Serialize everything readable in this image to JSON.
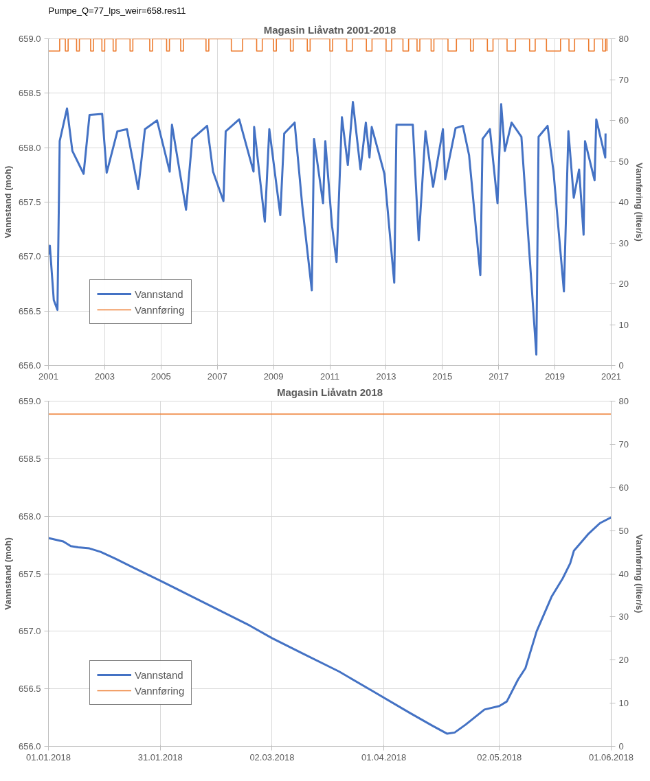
{
  "chart_data": [
    {
      "type": "line",
      "title": "Magasin Liåvatn 2001-2018",
      "annotations": [
        "Pumpe_Q=77_lps_weir=658.res11"
      ],
      "ylabel": "Vannstand (moh)",
      "y2label": "Vannføring (liter/s)",
      "xlim": [
        2001,
        2021
      ],
      "xticks": [
        2001,
        2003,
        2005,
        2007,
        2009,
        2011,
        2013,
        2015,
        2017,
        2019,
        2021
      ],
      "ylim": [
        656,
        659
      ],
      "yticks": [
        {
          "value": 656,
          "label": "656.0"
        },
        {
          "value": 656.5,
          "label": "656.5"
        },
        {
          "value": 657,
          "label": "657.0"
        },
        {
          "value": 657.5,
          "label": "657.5"
        },
        {
          "value": 658,
          "label": "658.0"
        },
        {
          "value": 658.5,
          "label": "658.5"
        },
        {
          "value": 659,
          "label": "659.0"
        }
      ],
      "y2lim": [
        0,
        80
      ],
      "y2ticks": [
        0,
        10,
        20,
        30,
        40,
        50,
        60,
        70,
        80
      ],
      "grid": true,
      "legend": "bottom left",
      "series": [
        {
          "name": "Vannstand",
          "color": "#4472c4",
          "x": [
            2001.0,
            2001.05,
            2001.19,
            2001.32,
            2001.4,
            2001.66,
            2001.85,
            2002.25,
            2002.46,
            2002.91,
            2003.07,
            2003.45,
            2003.79,
            2004.19,
            2004.43,
            2004.86,
            2005.31,
            2005.39,
            2005.89,
            2006.11,
            2006.64,
            2006.85,
            2007.22,
            2007.3,
            2007.78,
            2008.29,
            2008.31,
            2008.69,
            2008.85,
            2009.24,
            2009.38,
            2009.75,
            2010.02,
            2010.36,
            2010.44,
            2010.76,
            2010.84,
            2011.08,
            2011.24,
            2011.43,
            2011.64,
            2011.82,
            2012.09,
            2012.28,
            2012.41,
            2012.49,
            2012.94,
            2013.29,
            2013.37,
            2013.95,
            2014.16,
            2014.4,
            2014.67,
            2015.02,
            2015.1,
            2015.47,
            2015.73,
            2015.95,
            2016.35,
            2016.43,
            2016.69,
            2016.96,
            2017.09,
            2017.22,
            2017.46,
            2017.81,
            2018.34,
            2018.42,
            2018.74,
            2018.95,
            2019.32,
            2019.48,
            2019.67,
            2019.86,
            2020.02,
            2020.07,
            2020.41,
            2020.47,
            2020.79,
            2020.8
          ],
          "values": [
            657.02,
            657.1,
            656.6,
            656.51,
            658.06,
            658.36,
            657.97,
            657.76,
            658.3,
            658.31,
            657.77,
            658.15,
            658.17,
            657.62,
            658.17,
            658.25,
            657.78,
            658.21,
            657.43,
            658.08,
            658.2,
            657.78,
            657.51,
            658.15,
            658.26,
            657.78,
            658.19,
            657.32,
            658.17,
            657.38,
            658.13,
            658.23,
            657.47,
            656.69,
            658.08,
            657.49,
            658.06,
            657.28,
            656.95,
            658.28,
            657.84,
            658.42,
            657.8,
            658.23,
            657.91,
            658.19,
            657.76,
            656.76,
            658.21,
            658.21,
            657.15,
            658.15,
            657.64,
            658.17,
            657.71,
            658.18,
            658.2,
            657.93,
            656.83,
            658.08,
            658.17,
            657.49,
            658.4,
            657.97,
            658.23,
            658.1,
            656.1,
            658.1,
            658.2,
            657.78,
            656.68,
            658.15,
            657.54,
            657.8,
            657.2,
            658.06,
            657.7,
            658.26,
            657.91,
            658.13
          ]
        },
        {
          "name": "Vannføring",
          "type": "step",
          "axis": "y2",
          "color": "#ed7d31",
          "x": [
            2001.0,
            2001.4,
            2001.6,
            2001.7,
            2002.0,
            2002.1,
            2002.5,
            2002.6,
            2002.9,
            2003.0,
            2003.3,
            2003.4,
            2003.9,
            2004.0,
            2004.6,
            2004.7,
            2005.2,
            2005.3,
            2005.7,
            2005.8,
            2006.6,
            2006.7,
            2007.5,
            2007.9,
            2008.4,
            2008.6,
            2009.0,
            2009.1,
            2009.6,
            2009.7,
            2010.2,
            2010.3,
            2011.0,
            2011.1,
            2011.6,
            2011.8,
            2012.3,
            2012.5,
            2013.0,
            2013.2,
            2013.6,
            2013.8,
            2014.1,
            2014.2,
            2014.6,
            2014.7,
            2015.2,
            2015.5,
            2016.0,
            2016.1,
            2016.6,
            2016.8,
            2017.3,
            2017.6,
            2018.1,
            2018.3,
            2018.7,
            2019.2,
            2019.5,
            2019.7,
            2020.2,
            2020.4,
            2020.7,
            2020.8,
            2020.85
          ],
          "values": [
            77,
            80,
            77,
            80,
            77,
            80,
            77,
            80,
            77,
            80,
            77,
            80,
            77,
            80,
            77,
            80,
            77,
            80,
            77,
            80,
            77,
            80,
            77,
            80,
            77,
            80,
            77,
            80,
            77,
            80,
            77,
            80,
            77,
            80,
            77,
            80,
            77,
            80,
            77,
            80,
            77,
            80,
            77,
            80,
            77,
            80,
            77,
            80,
            77,
            80,
            77,
            80,
            77,
            80,
            77,
            80,
            77,
            80,
            77,
            80,
            77,
            80,
            77,
            80,
            77
          ]
        }
      ]
    },
    {
      "type": "line",
      "title": "Magasin Liåvatn 2018",
      "ylabel": "Vannstand (moh)",
      "y2label": "Vannføring (liter/s)",
      "xlim": [
        "2018-01-01",
        "2018-06-01"
      ],
      "xticks": [
        {
          "value": "2018-01-01",
          "label": "01.01.2018"
        },
        {
          "value": "2018-01-31",
          "label": "31.01.2018"
        },
        {
          "value": "2018-03-02",
          "label": "02.03.2018"
        },
        {
          "value": "2018-04-01",
          "label": "01.04.2018"
        },
        {
          "value": "2018-05-02",
          "label": "02.05.2018"
        },
        {
          "value": "2018-06-01",
          "label": "01.06.2018"
        }
      ],
      "ylim": [
        656,
        659
      ],
      "yticks": [
        {
          "value": 656,
          "label": "656.0"
        },
        {
          "value": 656.5,
          "label": "656.5"
        },
        {
          "value": 657,
          "label": "657.0"
        },
        {
          "value": 657.5,
          "label": "657.5"
        },
        {
          "value": 658,
          "label": "658.0"
        },
        {
          "value": 658.5,
          "label": "658.5"
        },
        {
          "value": 659,
          "label": "659.0"
        }
      ],
      "y2lim": [
        0,
        80
      ],
      "y2ticks": [
        0,
        10,
        20,
        30,
        40,
        50,
        60,
        70,
        80
      ],
      "grid": true,
      "legend": "bottom left",
      "series": [
        {
          "name": "Vannstand",
          "color": "#4472c4",
          "x": [
            "2018-01-01",
            "2018-01-05",
            "2018-01-07",
            "2018-01-09",
            "2018-01-12",
            "2018-01-15",
            "2018-01-19",
            "2018-01-24",
            "2018-01-31",
            "2018-02-08",
            "2018-02-16",
            "2018-02-24",
            "2018-03-02",
            "2018-03-10",
            "2018-03-20",
            "2018-03-29",
            "2018-04-08",
            "2018-04-14",
            "2018-04-18",
            "2018-04-20",
            "2018-04-23",
            "2018-04-28",
            "2018-05-02",
            "2018-05-04",
            "2018-05-07",
            "2018-05-09",
            "2018-05-12",
            "2018-05-16",
            "2018-05-19",
            "2018-05-21",
            "2018-05-22",
            "2018-05-26",
            "2018-05-29",
            "2018-06-01"
          ],
          "values": [
            657.81,
            657.78,
            657.74,
            657.73,
            657.72,
            657.69,
            657.63,
            657.55,
            657.44,
            657.31,
            657.18,
            657.05,
            656.94,
            656.81,
            656.65,
            656.48,
            656.29,
            656.18,
            656.11,
            656.12,
            656.19,
            656.32,
            656.35,
            656.39,
            656.58,
            656.68,
            657.0,
            657.3,
            657.46,
            657.59,
            657.7,
            657.85,
            657.94,
            657.99
          ]
        },
        {
          "name": "Vannføring",
          "axis": "y2",
          "color": "#ed7d31",
          "x": [
            "2018-01-01",
            "2018-06-01"
          ],
          "values": [
            77,
            77
          ]
        }
      ]
    }
  ]
}
